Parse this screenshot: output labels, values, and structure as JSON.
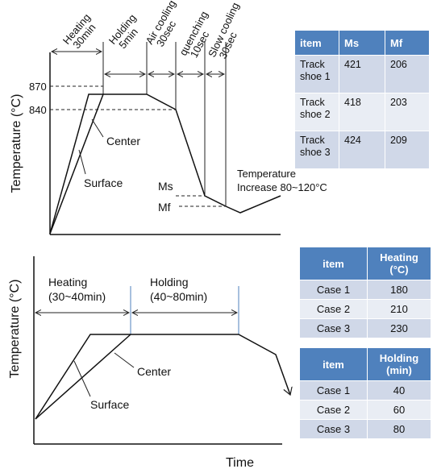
{
  "top_diagram": {
    "ylabel": "Temperature (°C)",
    "y_levels": [
      "870",
      "840"
    ],
    "phases": [
      {
        "line1": "Heating",
        "line2": "30min"
      },
      {
        "line1": "Holding",
        "line2": "5min"
      },
      {
        "line1": "Air cooling",
        "line2": "30sec"
      },
      {
        "line1": "quenching",
        "line2": "10sec"
      },
      {
        "line1": "Slow cooling",
        "line2": "30sec"
      }
    ],
    "curve_labels": {
      "center": "Center",
      "surface": "Surface"
    },
    "ms_label": "Ms",
    "mf_label": "Mf",
    "temp_note": {
      "line1": "Temperature",
      "line2": "Increase 80~120°C"
    }
  },
  "bottom_diagram": {
    "ylabel": "Temperature (°C)",
    "xlabel": "Time",
    "heating": {
      "line1": "Heating",
      "line2": "(30~40min)"
    },
    "holding": {
      "line1": "Holding",
      "line2": "(40~80min)"
    },
    "curve_labels": {
      "center": "Center",
      "surface": "Surface"
    }
  },
  "table_ms_mf": {
    "headers": [
      "item",
      "Ms",
      "Mf"
    ],
    "rows": [
      {
        "item_l1": "Track",
        "item_l2": "shoe 1",
        "ms": "421",
        "mf": "206"
      },
      {
        "item_l1": "Track",
        "item_l2": "shoe 2",
        "ms": "418",
        "mf": "203"
      },
      {
        "item_l1": "Track",
        "item_l2": "shoe 3",
        "ms": "424",
        "mf": "209"
      }
    ]
  },
  "table_heating": {
    "header_item": "item",
    "header_value_l1": "Heating",
    "header_value_l2": "(°C)",
    "rows": [
      {
        "item": "Case 1",
        "value": "180"
      },
      {
        "item": "Case 2",
        "value": "210"
      },
      {
        "item": "Case 3",
        "value": "230"
      }
    ]
  },
  "table_holding": {
    "header_item": "item",
    "header_value_l1": "Holding",
    "header_value_l2": "(min)",
    "rows": [
      {
        "item": "Case 1",
        "value": "40"
      },
      {
        "item": "Case 2",
        "value": "60"
      },
      {
        "item": "Case 3",
        "value": "80"
      }
    ]
  },
  "colors": {
    "phase_divider": "#4f81bd",
    "table_header": "#4f81bd",
    "row_dark": "#d0d8e8",
    "row_light": "#e9edf4"
  }
}
